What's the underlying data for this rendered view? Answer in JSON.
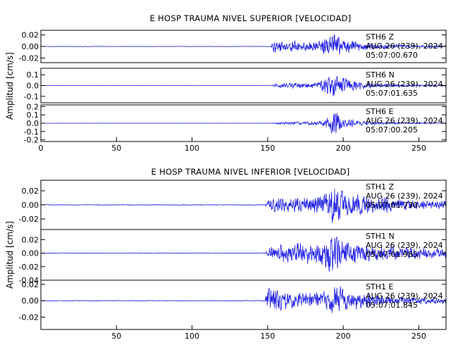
{
  "chart_data": [
    {
      "type": "line",
      "title": "E HOSP TRAUMA NIVEL SUPERIOR [VELOCIDAD]",
      "ylabel": "Amplitud [cm/s]",
      "xlabel": "",
      "xlim": [
        0,
        268
      ],
      "x_ticks": [
        0,
        50,
        100,
        150,
        200,
        250
      ],
      "grid": false,
      "series": [
        {
          "name": "STH6 Z",
          "annotation": [
            "STH6 Z",
            "AUG 26 (239), 2024",
            "05:07:00.670"
          ],
          "ylim": [
            -0.028,
            0.028
          ],
          "y_ticks": [
            0.02,
            0.0,
            -0.02
          ],
          "y_tick_labels": [
            "0.02",
            "0.00",
            "-0.02"
          ],
          "noise_amp": 0.0004,
          "onset_s": 152.0,
          "envelope": [
            [
              152,
              0.0
            ],
            [
              154,
              0.013
            ],
            [
              160,
              0.009
            ],
            [
              170,
              0.011
            ],
            [
              180,
              0.008
            ],
            [
              188,
              0.015
            ],
            [
              193,
              0.024
            ],
            [
              200,
              0.014
            ],
            [
              210,
              0.009
            ],
            [
              225,
              0.005
            ],
            [
              245,
              0.003
            ],
            [
              268,
              0.002
            ]
          ]
        },
        {
          "name": "STH6 N",
          "annotation": [
            "STH6 N",
            "AUG 26 (239), 2024",
            "05:07:01.635"
          ],
          "ylim": [
            -0.16,
            0.16
          ],
          "y_ticks": [
            0.1,
            0.0,
            -0.1
          ],
          "y_tick_labels": [
            "0.1",
            "0.0",
            "-0.1"
          ],
          "noise_amp": 0.001,
          "onset_s": 152.0,
          "envelope": [
            [
              152,
              0.0
            ],
            [
              155,
              0.02
            ],
            [
              165,
              0.03
            ],
            [
              175,
              0.025
            ],
            [
              185,
              0.05
            ],
            [
              192,
              0.12
            ],
            [
              200,
              0.08
            ],
            [
              210,
              0.04
            ],
            [
              225,
              0.02
            ],
            [
              245,
              0.012
            ],
            [
              268,
              0.008
            ]
          ]
        },
        {
          "name": "STH6 E",
          "annotation": [
            "STH6 E",
            "AUG 26 (239), 2024",
            "05:07:00.205"
          ],
          "ylim": [
            -0.22,
            0.22
          ],
          "y_ticks": [
            0.2,
            0.1,
            0.0,
            -0.1,
            -0.2
          ],
          "y_tick_labels": [
            "0.2",
            "0.1",
            "0.0",
            "-0.1",
            "-0.2"
          ],
          "noise_amp": 0.0012,
          "onset_s": 152.0,
          "envelope": [
            [
              152,
              0.0
            ],
            [
              156,
              0.015
            ],
            [
              170,
              0.02
            ],
            [
              185,
              0.03
            ],
            [
              190,
              0.07
            ],
            [
              194,
              0.2
            ],
            [
              200,
              0.07
            ],
            [
              210,
              0.03
            ],
            [
              230,
              0.015
            ],
            [
              268,
              0.008
            ]
          ]
        }
      ]
    },
    {
      "type": "line",
      "title": "E HOSP TRAUMA NIVEL INFERIOR [VELOCIDAD]",
      "ylabel": "Amplitud [cm/s]",
      "xlabel": "",
      "xlim": [
        0,
        268
      ],
      "x_ticks": [
        50,
        100,
        150,
        200,
        250
      ],
      "grid": false,
      "series": [
        {
          "name": "STH1 Z",
          "annotation": [
            "STH1 Z",
            "AUG 26 (239), 2024",
            "05:07:01.730"
          ],
          "ylim": [
            -0.035,
            0.035
          ],
          "y_ticks": [
            0.02,
            0.0,
            -0.02
          ],
          "y_tick_labels": [
            "0.02",
            "0.00",
            "-0.02"
          ],
          "noise_amp": 0.0006,
          "onset_s": 148.0,
          "envelope": [
            [
              148,
              0.0
            ],
            [
              151,
              0.012
            ],
            [
              160,
              0.01
            ],
            [
              175,
              0.012
            ],
            [
              185,
              0.015
            ],
            [
              193,
              0.033
            ],
            [
              200,
              0.022
            ],
            [
              210,
              0.016
            ],
            [
              225,
              0.012
            ],
            [
              245,
              0.008
            ],
            [
              268,
              0.006
            ]
          ]
        },
        {
          "name": "STH1 N",
          "annotation": [
            "STH1 N",
            "AUG 26 (239), 2024",
            "05:07:01.985"
          ],
          "ylim": [
            -0.04,
            0.035
          ],
          "y_ticks": [
            0.02,
            0.0,
            -0.02,
            -0.04
          ],
          "y_tick_labels": [
            "0.02",
            "0.00",
            "-0.02",
            "-0.04"
          ],
          "noise_amp": 0.0005,
          "onset_s": 148.0,
          "envelope": [
            [
              148,
              0.0
            ],
            [
              152,
              0.012
            ],
            [
              165,
              0.015
            ],
            [
              180,
              0.018
            ],
            [
              190,
              0.03
            ],
            [
              197,
              0.026
            ],
            [
              205,
              0.02
            ],
            [
              220,
              0.014
            ],
            [
              240,
              0.01
            ],
            [
              268,
              0.007
            ]
          ]
        },
        {
          "name": "STH1 E",
          "annotation": [
            "STH1 E",
            "AUG 26 (239), 2024",
            "05:07:01.845"
          ],
          "ylim": [
            -0.035,
            0.025
          ],
          "y_ticks": [
            0.02,
            0.0,
            -0.02
          ],
          "y_tick_labels": [
            "0.02",
            "0.00",
            "-0.02"
          ],
          "noise_amp": 0.0005,
          "onset_s": 148.0,
          "envelope": [
            [
              148,
              0.0
            ],
            [
              150,
              0.02
            ],
            [
              155,
              0.014
            ],
            [
              170,
              0.009
            ],
            [
              185,
              0.012
            ],
            [
              195,
              0.02
            ],
            [
              205,
              0.012
            ],
            [
              220,
              0.008
            ],
            [
              245,
              0.005
            ],
            [
              268,
              0.004
            ]
          ]
        }
      ]
    }
  ]
}
